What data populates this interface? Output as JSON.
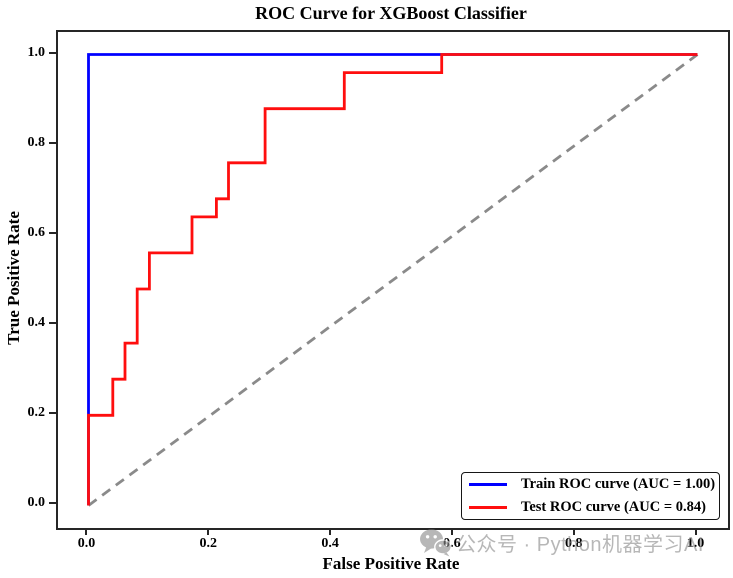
{
  "title": "ROC Curve for XGBoost Classifier",
  "axes_labels": {
    "xlabel": "False Positive Rate",
    "ylabel": "True Positive Rate"
  },
  "legend": {
    "position": "lower right",
    "entries": [
      {
        "label": "Train ROC curve (AUC = 1.00)",
        "color": "#0000ff"
      },
      {
        "label": "Test ROC curve (AUC = 0.84)",
        "color": "#ff0e0e"
      }
    ]
  },
  "watermark": {
    "icon": "wechat-icon",
    "text": "公众号 · Python机器学习AI",
    "color": "#8c8c8c"
  },
  "colors": {
    "train_curve": "#0000ff",
    "test_curve": "#ff0e0e",
    "chance_diagonal": "#8a8a8a",
    "spine": "#262626",
    "background": "#ffffff",
    "text": "#000000"
  },
  "chart_data": {
    "type": "line",
    "title": "ROC Curve for XGBoost Classifier",
    "xlabel": "False Positive Rate",
    "ylabel": "True Positive Rate",
    "xlim": [
      -0.05,
      1.05
    ],
    "ylim": [
      -0.05,
      1.05
    ],
    "xticks": [
      0.0,
      0.2,
      0.4,
      0.6,
      0.8,
      1.0
    ],
    "yticks": [
      0.0,
      0.2,
      0.4,
      0.6,
      0.8,
      1.0
    ],
    "grid": false,
    "legend_position": "lower right",
    "series": [
      {
        "name": "chance-diagonal",
        "color": "#8a8a8a",
        "style": "dashed",
        "in_legend": false,
        "auc": null,
        "points": [
          [
            0.0,
            0.0
          ],
          [
            1.0,
            1.0
          ]
        ]
      },
      {
        "name": "Train ROC curve (AUC = 1.00)",
        "color": "#0000ff",
        "style": "solid",
        "in_legend": true,
        "auc": 1.0,
        "points": [
          [
            0.0,
            0.0
          ],
          [
            0.0,
            1.0
          ],
          [
            1.0,
            1.0
          ]
        ]
      },
      {
        "name": "Test ROC curve (AUC = 0.84)",
        "color": "#ff0e0e",
        "style": "solid",
        "in_legend": true,
        "auc": 0.84,
        "points": [
          [
            0.0,
            0.0
          ],
          [
            0.0,
            0.2
          ],
          [
            0.04,
            0.2
          ],
          [
            0.04,
            0.28
          ],
          [
            0.06,
            0.28
          ],
          [
            0.06,
            0.36
          ],
          [
            0.08,
            0.36
          ],
          [
            0.08,
            0.48
          ],
          [
            0.1,
            0.48
          ],
          [
            0.1,
            0.56
          ],
          [
            0.17,
            0.56
          ],
          [
            0.17,
            0.64
          ],
          [
            0.21,
            0.64
          ],
          [
            0.21,
            0.68
          ],
          [
            0.23,
            0.68
          ],
          [
            0.23,
            0.76
          ],
          [
            0.29,
            0.76
          ],
          [
            0.29,
            0.88
          ],
          [
            0.42,
            0.88
          ],
          [
            0.42,
            0.96
          ],
          [
            0.58,
            0.96
          ],
          [
            0.58,
            1.0
          ],
          [
            1.0,
            1.0
          ]
        ]
      }
    ]
  }
}
